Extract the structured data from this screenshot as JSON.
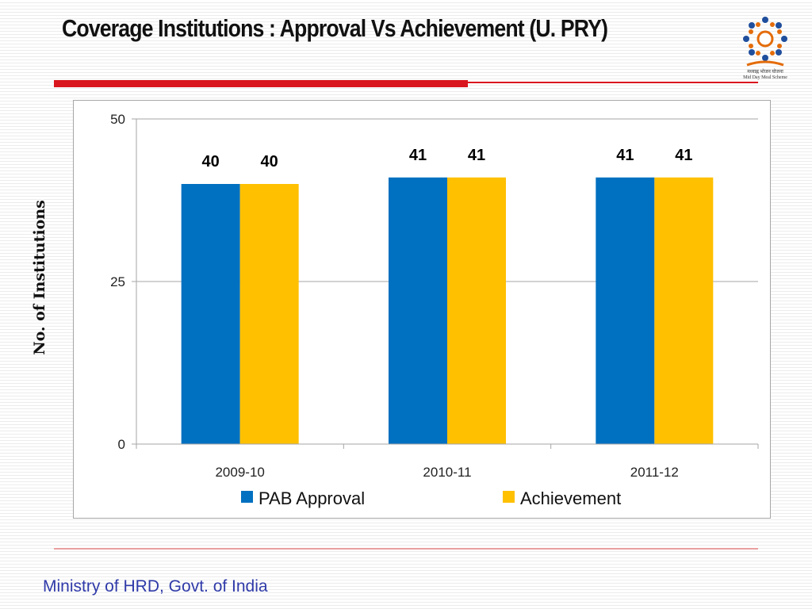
{
  "slide": {
    "title": "Coverage Institutions : Approval Vs Achievement (U. PRY)",
    "footer": "Ministry of HRD, Govt. of India",
    "logo_caption_line1": "मध्याह्न भोजन योजना",
    "logo_caption_line2": "Mid Day Meal Scheme"
  },
  "chart_data": {
    "type": "bar",
    "title": "",
    "xlabel": "",
    "ylabel": "No. of Institutions",
    "categories": [
      "2009-10",
      "2010-11",
      "2011-12"
    ],
    "series": [
      {
        "name": "PAB Approval",
        "values": [
          40,
          41,
          41
        ],
        "color": "#0070c0"
      },
      {
        "name": "Achievement",
        "values": [
          40,
          41,
          41
        ],
        "color": "#ffc000"
      }
    ],
    "ylim": [
      0,
      50
    ],
    "yticks": [
      0,
      25,
      50
    ],
    "grid": true,
    "legend": "bottom",
    "data_labels": true
  }
}
